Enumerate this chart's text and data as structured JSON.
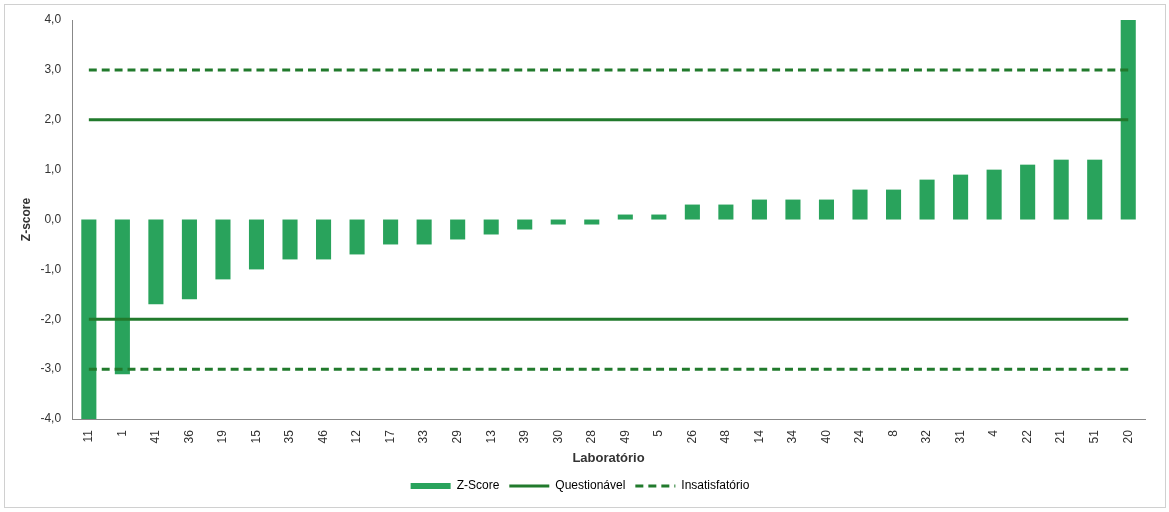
{
  "chart_data": {
    "type": "bar",
    "xlabel": "Laboratório",
    "ylabel": "Z-score",
    "categories": [
      "11",
      "1",
      "41",
      "36",
      "19",
      "15",
      "35",
      "46",
      "12",
      "17",
      "33",
      "29",
      "13",
      "39",
      "30",
      "28",
      "49",
      "5",
      "26",
      "48",
      "14",
      "34",
      "40",
      "24",
      "8",
      "32",
      "31",
      "4",
      "22",
      "21",
      "51",
      "20"
    ],
    "series": [
      {
        "name": "Z-Score",
        "color": "#29a35c",
        "values": [
          -4.0,
          -3.1,
          -1.7,
          -1.6,
          -1.2,
          -1.0,
          -0.8,
          -0.8,
          -0.7,
          -0.5,
          -0.5,
          -0.4,
          -0.3,
          -0.2,
          -0.1,
          -0.1,
          0.1,
          0.1,
          0.3,
          0.3,
          0.4,
          0.4,
          0.4,
          0.6,
          0.6,
          0.8,
          0.9,
          1.0,
          1.1,
          1.2,
          1.2,
          4.0
        ]
      },
      {
        "name": "Questionável",
        "type": "line",
        "color": "#217a2c",
        "line_style": "solid",
        "values": [
          2,
          2,
          2,
          2,
          2,
          2,
          2,
          2,
          2,
          2,
          2,
          2,
          2,
          2,
          2,
          2,
          2,
          2,
          2,
          2,
          2,
          2,
          2,
          2,
          2,
          2,
          2,
          2,
          2,
          2,
          2,
          2
        ]
      },
      {
        "type": "line",
        "color": "#217a2c",
        "line_style": "solid",
        "values": [
          -2,
          -2,
          -2,
          -2,
          -2,
          -2,
          -2,
          -2,
          -2,
          -2,
          -2,
          -2,
          -2,
          -2,
          -2,
          -2,
          -2,
          -2,
          -2,
          -2,
          -2,
          -2,
          -2,
          -2,
          -2,
          -2,
          -2,
          -2,
          -2,
          -2,
          -2,
          -2
        ]
      },
      {
        "name": "Insatisfatório",
        "type": "line",
        "color": "#217a2c",
        "line_style": "dashed",
        "values": [
          3,
          3,
          3,
          3,
          3,
          3,
          3,
          3,
          3,
          3,
          3,
          3,
          3,
          3,
          3,
          3,
          3,
          3,
          3,
          3,
          3,
          3,
          3,
          3,
          3,
          3,
          3,
          3,
          3,
          3,
          3,
          3
        ]
      },
      {
        "type": "line",
        "color": "#217a2c",
        "line_style": "dashed",
        "values": [
          -3,
          -3,
          -3,
          -3,
          -3,
          -3,
          -3,
          -3,
          -3,
          -3,
          -3,
          -3,
          -3,
          -3,
          -3,
          -3,
          -3,
          -3,
          -3,
          -3,
          -3,
          -3,
          -3,
          -3,
          -3,
          -3,
          -3,
          -3,
          -3,
          -3,
          -3,
          -3
        ]
      }
    ],
    "ylim": [
      -4,
      4
    ],
    "yticks": [
      {
        "value": -4,
        "label": "-4,0"
      },
      {
        "value": -3,
        "label": "-3,0"
      },
      {
        "value": -2,
        "label": "-2,0"
      },
      {
        "value": -1,
        "label": "-1,0"
      },
      {
        "value": 0,
        "label": "0,0"
      },
      {
        "value": 1,
        "label": "1,0"
      },
      {
        "value": 2,
        "label": "2,0"
      },
      {
        "value": 3,
        "label": "3,0"
      },
      {
        "value": 4,
        "label": "4,0"
      }
    ],
    "grid": false,
    "legend": "bottom"
  }
}
